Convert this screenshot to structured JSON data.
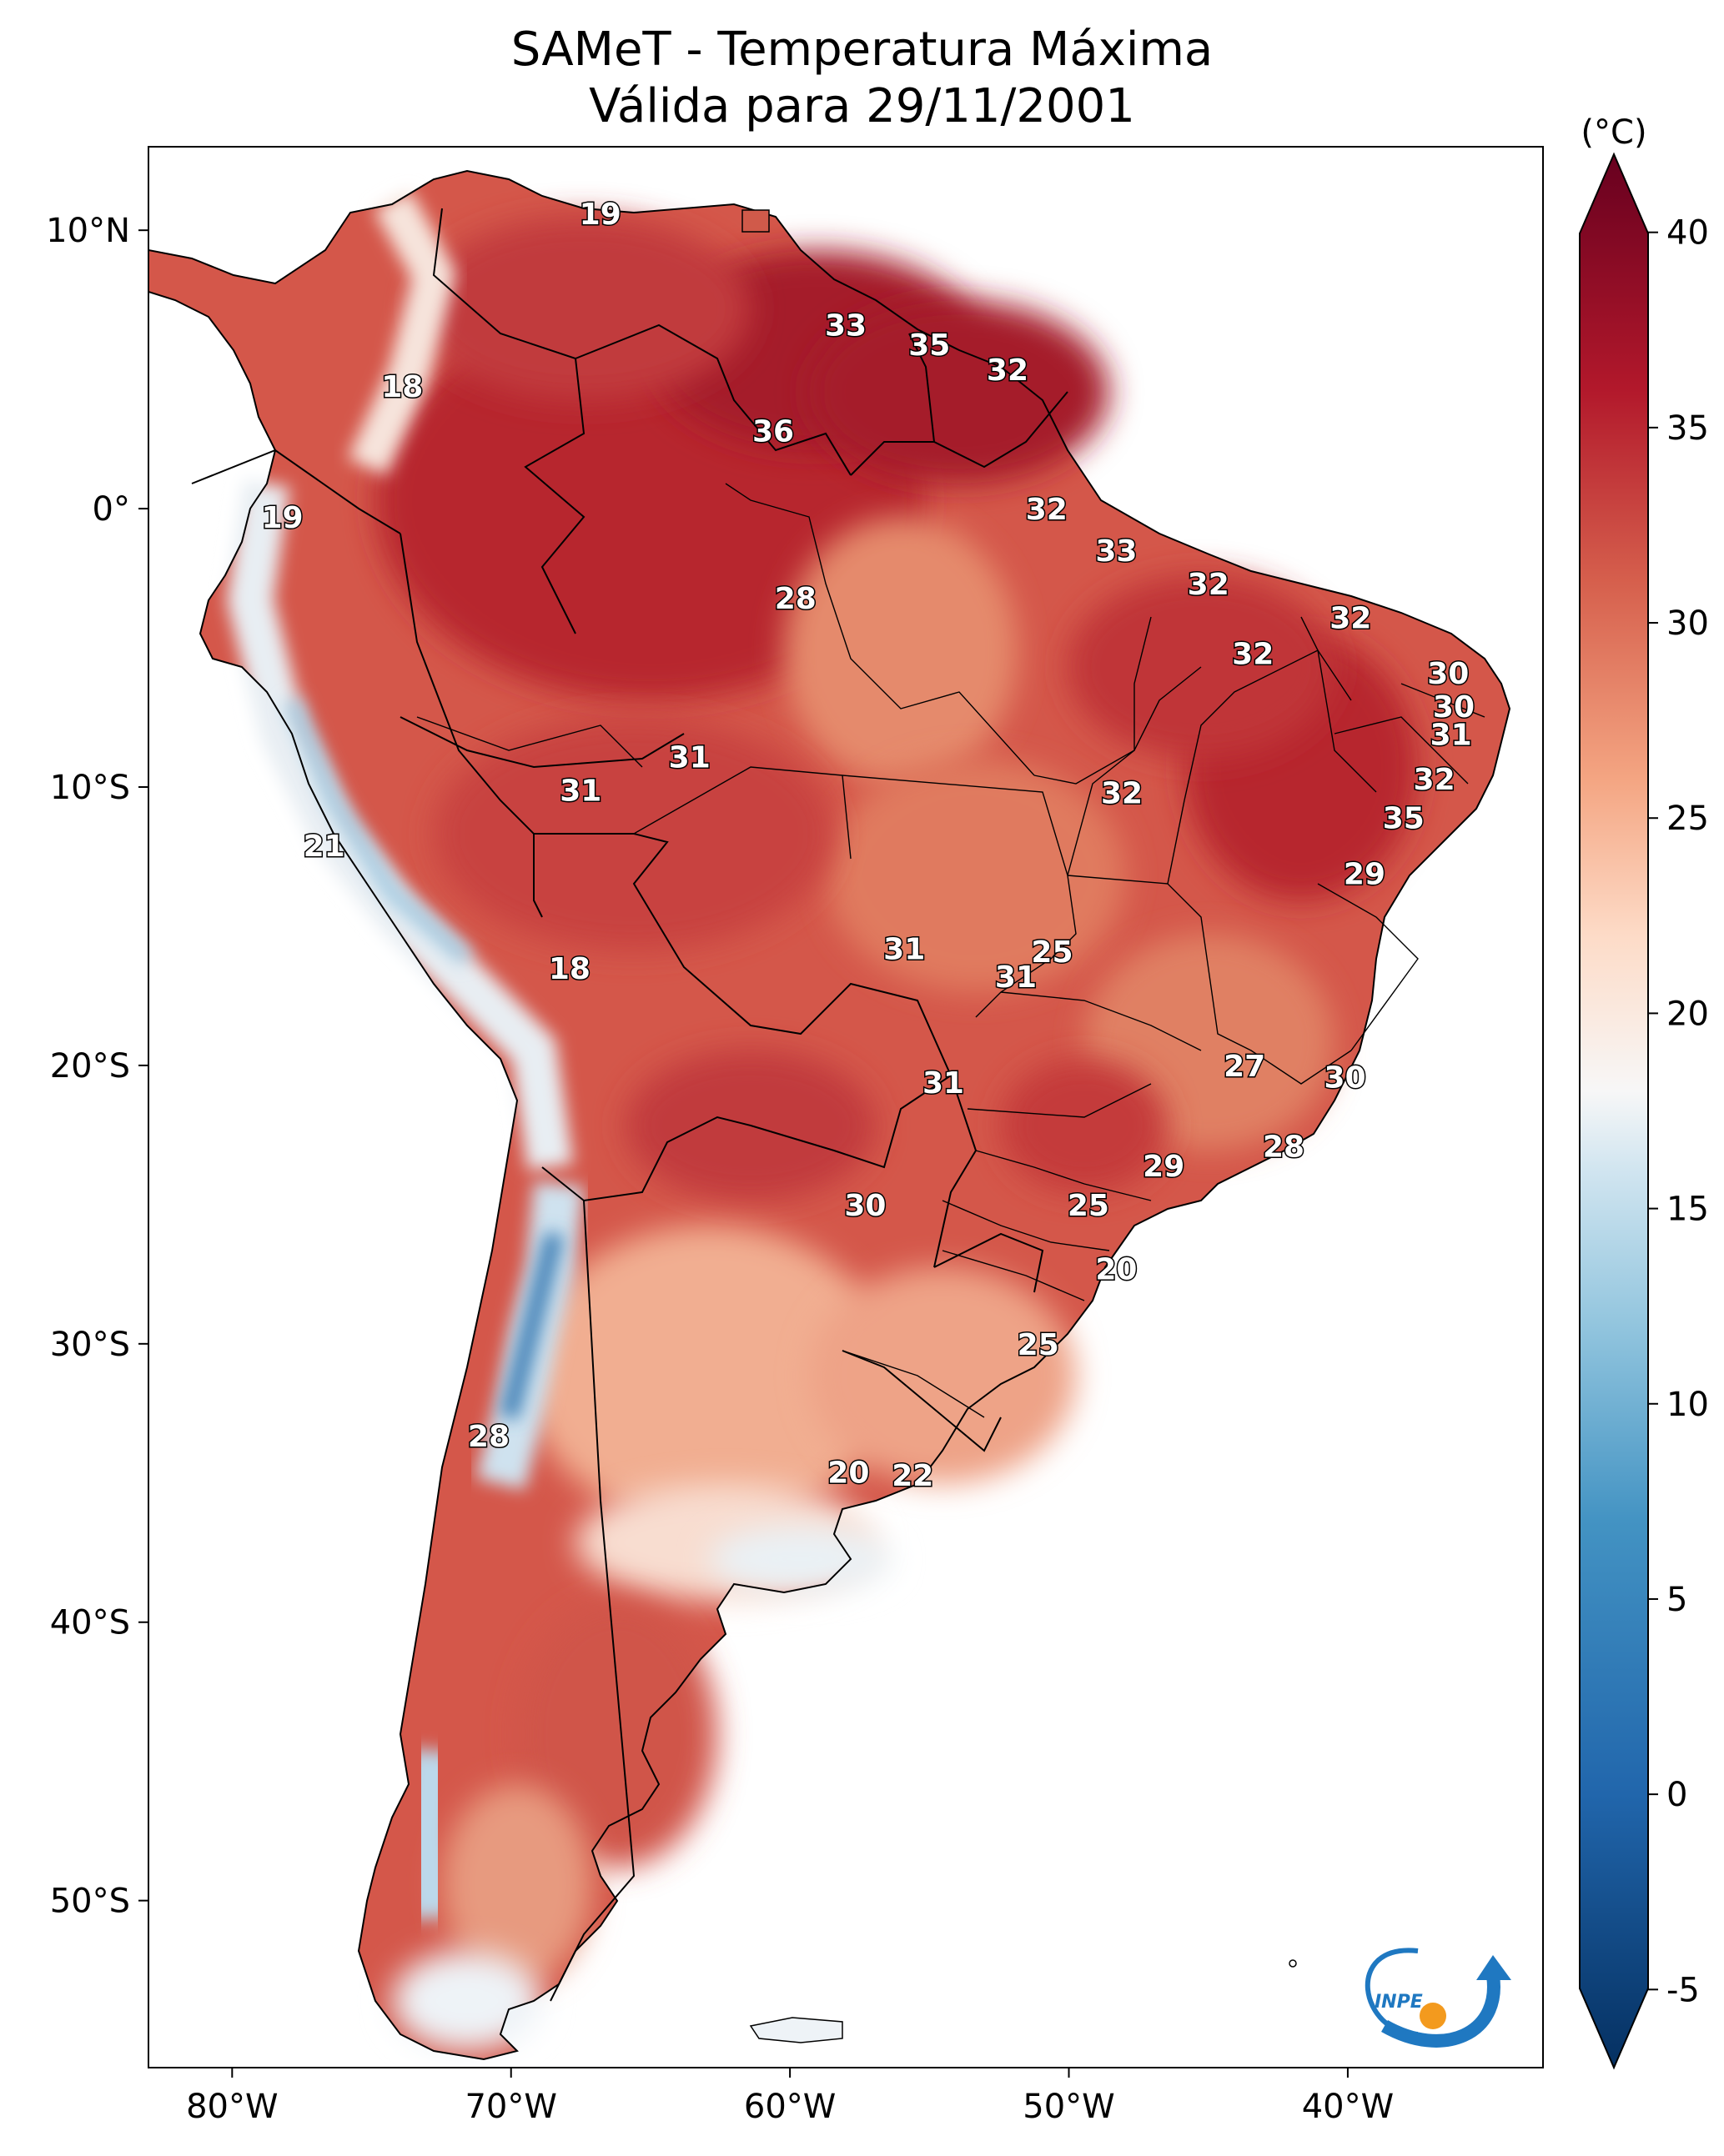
{
  "title": {
    "line1": "SAMeT - Temperatura Máxima",
    "line2": "Válida para 29/11/2001"
  },
  "map": {
    "lon_range": [
      -83,
      -33
    ],
    "lat_range": [
      -56,
      13
    ],
    "x_ticks": [
      {
        "value": -80,
        "label": "80°W"
      },
      {
        "value": -70,
        "label": "70°W"
      },
      {
        "value": -60,
        "label": "60°W"
      },
      {
        "value": -50,
        "label": "50°W"
      },
      {
        "value": -40,
        "label": "40°W"
      }
    ],
    "y_ticks": [
      {
        "value": 10,
        "label": "10°N"
      },
      {
        "value": 0,
        "label": "0°"
      },
      {
        "value": -10,
        "label": "10°S"
      },
      {
        "value": -20,
        "label": "20°S"
      },
      {
        "value": -30,
        "label": "30°S"
      },
      {
        "value": -40,
        "label": "40°S"
      },
      {
        "value": -50,
        "label": "50°S"
      }
    ],
    "contour_labels": [
      {
        "text": "19",
        "lon": -66.8,
        "lat": 10.6
      },
      {
        "text": "18",
        "lon": -73.9,
        "lat": 4.4
      },
      {
        "text": "33",
        "lon": -58.0,
        "lat": 6.6
      },
      {
        "text": "35",
        "lon": -55.0,
        "lat": 5.9
      },
      {
        "text": "32",
        "lon": -52.2,
        "lat": 5.0
      },
      {
        "text": "36",
        "lon": -60.6,
        "lat": 2.8
      },
      {
        "text": "19",
        "lon": -78.2,
        "lat": -0.3
      },
      {
        "text": "32",
        "lon": -50.8,
        "lat": 0.0
      },
      {
        "text": "33",
        "lon": -48.3,
        "lat": -1.5
      },
      {
        "text": "28",
        "lon": -59.8,
        "lat": -3.2
      },
      {
        "text": "32",
        "lon": -45.0,
        "lat": -2.7
      },
      {
        "text": "32",
        "lon": -39.9,
        "lat": -3.9
      },
      {
        "text": "32",
        "lon": -43.4,
        "lat": -5.2
      },
      {
        "text": "30",
        "lon": -36.4,
        "lat": -5.9
      },
      {
        "text": "30",
        "lon": -36.2,
        "lat": -7.1
      },
      {
        "text": "31",
        "lon": -36.3,
        "lat": -8.1
      },
      {
        "text": "31",
        "lon": -63.6,
        "lat": -8.9
      },
      {
        "text": "31",
        "lon": -67.5,
        "lat": -10.1
      },
      {
        "text": "32",
        "lon": -48.1,
        "lat": -10.2
      },
      {
        "text": "32",
        "lon": -36.9,
        "lat": -9.7
      },
      {
        "text": "35",
        "lon": -38.0,
        "lat": -11.1
      },
      {
        "text": "21",
        "lon": -76.7,
        "lat": -12.1
      },
      {
        "text": "29",
        "lon": -39.4,
        "lat": -13.1
      },
      {
        "text": "31",
        "lon": -55.9,
        "lat": -15.8
      },
      {
        "text": "25",
        "lon": -50.6,
        "lat": -15.9
      },
      {
        "text": "31",
        "lon": -51.9,
        "lat": -16.8
      },
      {
        "text": "18",
        "lon": -67.9,
        "lat": -16.5
      },
      {
        "text": "27",
        "lon": -43.7,
        "lat": -20.0
      },
      {
        "text": "30",
        "lon": -40.1,
        "lat": -20.4
      },
      {
        "text": "31",
        "lon": -54.5,
        "lat": -20.6
      },
      {
        "text": "28",
        "lon": -42.3,
        "lat": -22.9
      },
      {
        "text": "29",
        "lon": -46.6,
        "lat": -23.6
      },
      {
        "text": "30",
        "lon": -57.3,
        "lat": -25.0
      },
      {
        "text": "25",
        "lon": -49.3,
        "lat": -25.0
      },
      {
        "text": "20",
        "lon": -48.3,
        "lat": -27.3
      },
      {
        "text": "25",
        "lon": -51.1,
        "lat": -30.0
      },
      {
        "text": "28",
        "lon": -70.8,
        "lat": -33.3
      },
      {
        "text": "20",
        "lon": -57.9,
        "lat": -34.6
      },
      {
        "text": "22",
        "lon": -55.6,
        "lat": -34.7
      }
    ],
    "logo_text": "INPE",
    "colors": {
      "ocean": "#ffffff",
      "warm_dark": "#b7252f",
      "warm": "#d05a4a",
      "mild": "#f1ae91",
      "pale": "#f8ddd0",
      "cool": "#d2e4ef",
      "cold": "#4f95c4",
      "logo_blue": "#1f78c1",
      "logo_orange": "#f39a1e"
    }
  },
  "colorbar": {
    "unit_label": "(°C)",
    "min": -7,
    "max": 42,
    "tick_values": [
      -5,
      0,
      5,
      10,
      15,
      20,
      25,
      30,
      35,
      40
    ],
    "tick_labels": [
      "-5",
      "0",
      "5",
      "10",
      "15",
      "20",
      "25",
      "30",
      "35",
      "40"
    ],
    "stops": [
      {
        "v": -7,
        "c": "#053061"
      },
      {
        "v": 0,
        "c": "#2166ac"
      },
      {
        "v": 7,
        "c": "#4393c3"
      },
      {
        "v": 12,
        "c": "#92c5de"
      },
      {
        "v": 16,
        "c": "#d1e5f0"
      },
      {
        "v": 18,
        "c": "#f7f7f7"
      },
      {
        "v": 22,
        "c": "#fddbc7"
      },
      {
        "v": 26,
        "c": "#f4a582"
      },
      {
        "v": 31,
        "c": "#d6604d"
      },
      {
        "v": 36,
        "c": "#b2182b"
      },
      {
        "v": 42,
        "c": "#67001f"
      }
    ]
  }
}
